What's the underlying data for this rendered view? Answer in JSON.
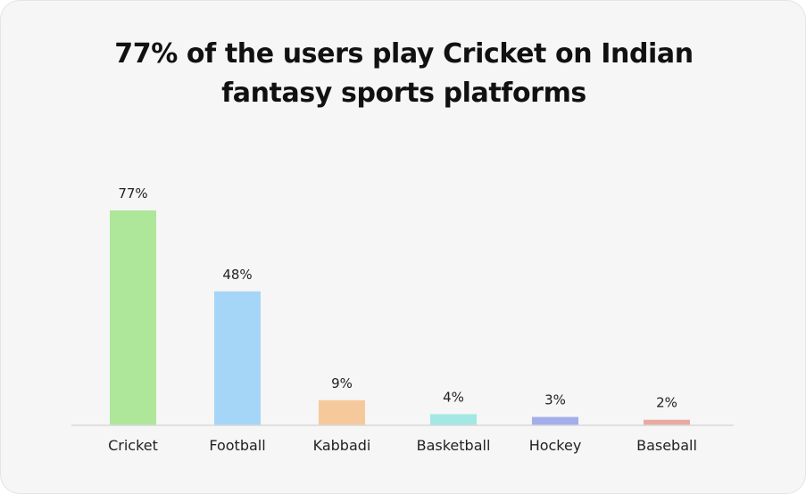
{
  "chart_title": {
    "line1": "77% of the users play Cricket on Indian",
    "line2": "fantasy sports platforms"
  },
  "chart_data": {
    "type": "bar",
    "title": "77% of the users play Cricket on Indian fantasy sports platforms",
    "categories": [
      "Cricket",
      "Football",
      "Kabbadi",
      "Basketball",
      "Hockey",
      "Baseball"
    ],
    "values": [
      77,
      48,
      9,
      4,
      3,
      2
    ],
    "value_labels": [
      "77%",
      "48%",
      "9%",
      "4%",
      "3%",
      "2%"
    ],
    "unit": "%",
    "colors": [
      "#aee69a",
      "#a6d6f7",
      "#f6c99c",
      "#a3e8e3",
      "#a3aeea",
      "#e9aaa2"
    ],
    "xlabel": "",
    "ylabel": "",
    "grid": false,
    "legend": "none"
  },
  "colors": {
    "background": "#f6f6f6",
    "baseline": "#d9d9d9",
    "text": "#222222"
  }
}
